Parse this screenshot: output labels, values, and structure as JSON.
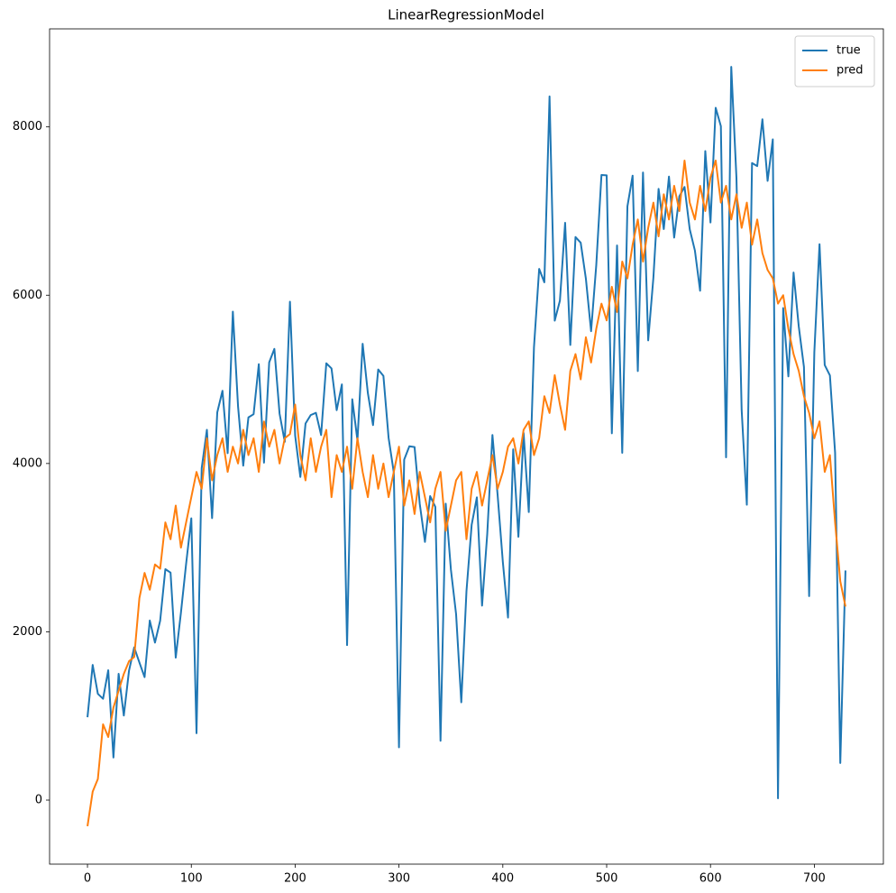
{
  "chart_data": {
    "type": "line",
    "title": "LinearRegressionModel",
    "x": [
      0,
      5,
      10,
      15,
      20,
      25,
      30,
      35,
      40,
      45,
      50,
      55,
      60,
      65,
      70,
      75,
      80,
      85,
      90,
      95,
      100,
      105,
      110,
      115,
      120,
      125,
      130,
      135,
      140,
      145,
      150,
      155,
      160,
      165,
      170,
      175,
      180,
      185,
      190,
      195,
      200,
      205,
      210,
      215,
      220,
      225,
      230,
      235,
      240,
      245,
      250,
      255,
      260,
      265,
      270,
      275,
      280,
      285,
      290,
      295,
      300,
      305,
      310,
      315,
      320,
      325,
      330,
      335,
      340,
      345,
      350,
      355,
      360,
      365,
      370,
      375,
      380,
      385,
      390,
      395,
      400,
      405,
      410,
      415,
      420,
      425,
      430,
      435,
      440,
      445,
      450,
      455,
      460,
      465,
      470,
      475,
      480,
      485,
      490,
      495,
      500,
      505,
      510,
      515,
      520,
      525,
      530,
      535,
      540,
      545,
      550,
      555,
      560,
      565,
      570,
      575,
      580,
      585,
      590,
      595,
      600,
      605,
      610,
      615,
      620,
      625,
      630,
      635,
      640,
      645,
      650,
      655,
      660,
      665,
      670,
      675,
      680,
      685,
      690,
      695,
      700,
      705,
      710,
      715,
      720,
      725,
      730
    ],
    "series": [
      {
        "name": "true",
        "color": "#1f77b4",
        "values": [
          985,
          1606,
          1263,
          1204,
          1543,
          506,
          1501,
          1005,
          1538,
          1815,
          1635,
          1461,
          2134,
          1872,
          2132,
          2744,
          2703,
          1693,
          2227,
          2808,
          3348,
          795,
          3944,
          4400,
          3351,
          4608,
          4864,
          4123,
          5805,
          4679,
          3974,
          4548,
          4586,
          5180,
          4010,
          5202,
          5362,
          4592,
          4258,
          5923,
          4332,
          3840,
          4475,
          4576,
          4602,
          4338,
          5191,
          5130,
          4634,
          4940,
          1842,
          4763,
          4274,
          5423,
          4839,
          4456,
          5117,
          5041,
          4304,
          3894,
          627,
          4046,
          4205,
          4195,
          3520,
          3068,
          3613,
          3485,
          705,
          3523,
          2739,
          2209,
          1162,
          2485,
          3272,
          3598,
          2311,
          3163,
          4339,
          3624,
          2832,
          2169,
          4169,
          3129,
          4363,
          3423,
          5382,
          6312,
          6153,
          8362,
          5698,
          5936,
          6860,
          5409,
          6691,
          6624,
          6196,
          5572,
          6359,
          7429,
          7424,
          4359,
          6591,
          4127,
          7055,
          7421,
          5099,
          7458,
          5463,
          6207,
          7264,
          6786,
          7410,
          6685,
          7175,
          7286,
          6784,
          6530,
          6053,
          7713,
          6864,
          8227,
          8009,
          4073,
          8714,
          7393,
          4639,
          3510,
          7570,
          7534,
          8090,
          7359,
          7852,
          22,
          5847,
          5035,
          6269,
          5629,
          5146,
          2424,
          5323,
          6606,
          5170,
          5047,
          4128,
          441,
          2729
        ]
      },
      {
        "name": "pred",
        "color": "#ff7f0e",
        "values": [
          -310,
          100,
          250,
          900,
          750,
          1100,
          1300,
          1500,
          1650,
          1700,
          2400,
          2700,
          2500,
          2800,
          2750,
          3300,
          3100,
          3500,
          3000,
          3300,
          3600,
          3900,
          3700,
          4300,
          3800,
          4100,
          4300,
          3900,
          4200,
          4000,
          4400,
          4100,
          4300,
          3900,
          4500,
          4200,
          4400,
          4000,
          4300,
          4350,
          4700,
          4100,
          3800,
          4300,
          3900,
          4200,
          4400,
          3600,
          4100,
          3900,
          4200,
          3700,
          4300,
          3900,
          3600,
          4100,
          3700,
          4000,
          3600,
          3900,
          4200,
          3500,
          3800,
          3400,
          3900,
          3600,
          3300,
          3700,
          3900,
          3200,
          3500,
          3800,
          3900,
          3100,
          3700,
          3900,
          3500,
          3800,
          4100,
          3700,
          3900,
          4200,
          4300,
          4000,
          4400,
          4500,
          4100,
          4300,
          4800,
          4600,
          5050,
          4700,
          4400,
          5100,
          5300,
          5000,
          5500,
          5200,
          5600,
          5900,
          5700,
          6100,
          5800,
          6400,
          6200,
          6600,
          6900,
          6400,
          6800,
          7100,
          6700,
          7200,
          6900,
          7300,
          7000,
          7600,
          7100,
          6900,
          7300,
          7000,
          7400,
          7600,
          7100,
          7300,
          6900,
          7200,
          6800,
          7100,
          6600,
          6900,
          6500,
          6300,
          6200,
          5900,
          6000,
          5600,
          5300,
          5100,
          4800,
          4600,
          4300,
          4500,
          3900,
          4100,
          3300,
          2600,
          2300
        ]
      }
    ],
    "xlim": [
      -36.5,
      766.5
    ],
    "xticks": [
      0,
      100,
      200,
      300,
      400,
      500,
      600,
      700
    ],
    "ylim": [
      -761,
      9165
    ],
    "yticks": [
      0,
      2000,
      4000,
      6000,
      8000
    ],
    "grid": false,
    "legend": "upper right"
  }
}
